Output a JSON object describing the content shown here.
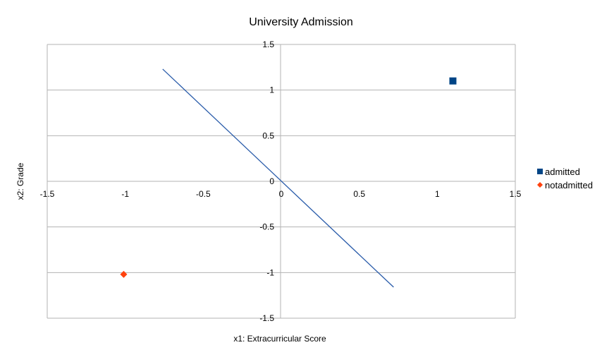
{
  "chart_data": {
    "type": "scatter",
    "title": "University Admission",
    "xlabel": "x1: Extracurricular Score",
    "ylabel": "x2: Grade",
    "xlim": [
      -1.5,
      1.5
    ],
    "ylim": [
      -1.5,
      1.5
    ],
    "x_ticks": [
      "-1.5",
      "-1",
      "-0.5",
      "0",
      "0.5",
      "1",
      "1.5"
    ],
    "y_ticks": [
      "1.5",
      "1",
      "0.5",
      "0",
      "-0.5",
      "-1",
      "-1.5"
    ],
    "grid": true,
    "legend_position": "right",
    "series": [
      {
        "name": "admitted",
        "marker": "square",
        "color": "#004586",
        "points": [
          {
            "x": 1.1,
            "y": 1.1
          }
        ]
      },
      {
        "name": "notadmitted",
        "marker": "diamond",
        "color": "#ff420e",
        "points": [
          {
            "x": -1.01,
            "y": -1.02
          }
        ]
      }
    ],
    "line": {
      "color": "#2a5caa",
      "points": [
        {
          "x": -0.76,
          "y": 1.23
        },
        {
          "x": 0.72,
          "y": -1.16
        }
      ]
    }
  }
}
